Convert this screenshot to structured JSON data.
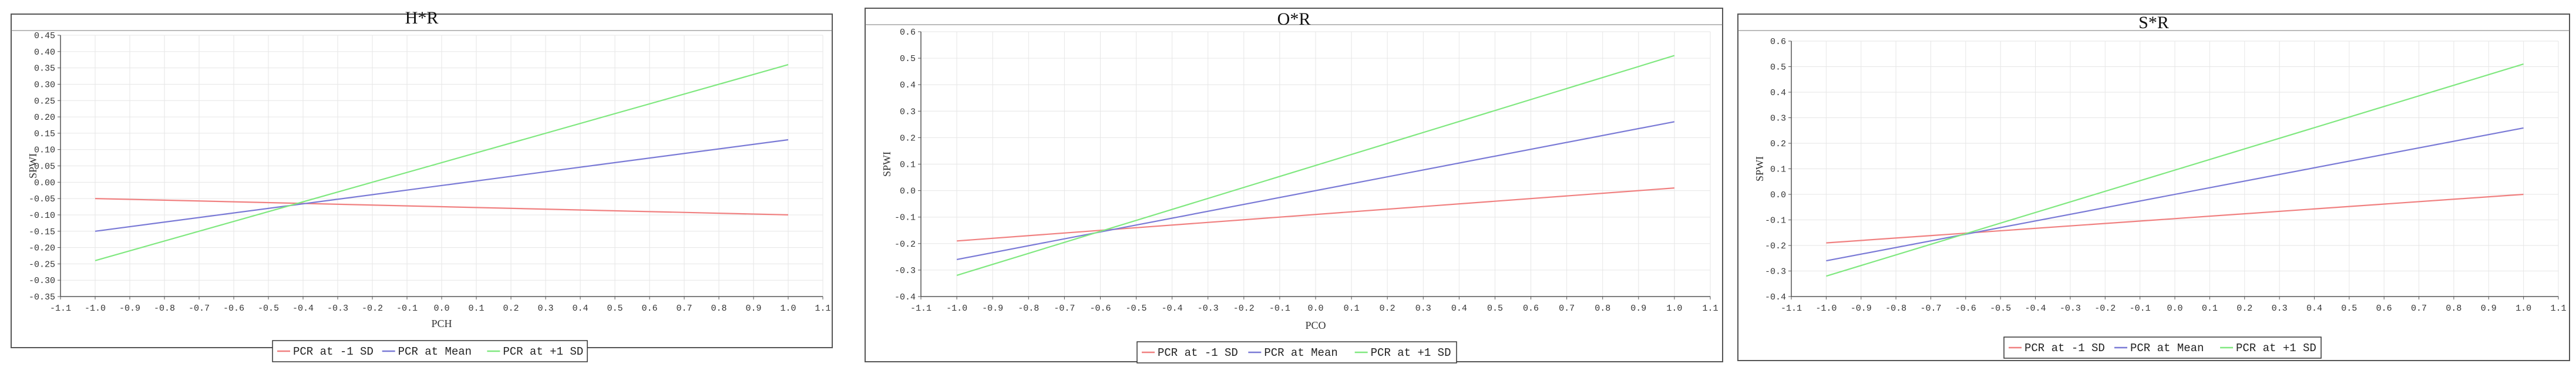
{
  "chart_data": [
    {
      "type": "line",
      "title": "H*R",
      "xlabel": "PCH",
      "ylabel": "SPWI",
      "xlim": [
        -1.1,
        1.1
      ],
      "ylim": [
        -0.35,
        0.45
      ],
      "xticks": [
        "-1.1",
        "-1.0",
        "-0.9",
        "-0.8",
        "-0.7",
        "-0.6",
        "-0.5",
        "-0.4",
        "-0.3",
        "-0.2",
        "-0.1",
        "0.0",
        "0.1",
        "0.2",
        "0.3",
        "0.4",
        "0.5",
        "0.6",
        "0.7",
        "0.8",
        "0.9",
        "1.0",
        "1.1"
      ],
      "yticks": [
        "-0.35",
        "-0.30",
        "-0.25",
        "-0.20",
        "-0.15",
        "-0.10",
        "-0.05",
        "0.00",
        "0.05",
        "0.10",
        "0.15",
        "0.20",
        "0.25",
        "0.30",
        "0.35",
        "0.40",
        "0.45"
      ],
      "ytick_step": 0.05,
      "grid": true,
      "legend_position": "bottom-center",
      "series": [
        {
          "name": "PCR at -1 SD",
          "color": "#f08080",
          "x": [
            -1.0,
            1.0
          ],
          "y": [
            -0.05,
            -0.1
          ]
        },
        {
          "name": "PCR at Mean",
          "color": "#7a7ad6",
          "x": [
            -1.0,
            1.0
          ],
          "y": [
            -0.15,
            0.13
          ]
        },
        {
          "name": "PCR at +1 SD",
          "color": "#80e880",
          "x": [
            -1.0,
            1.0
          ],
          "y": [
            -0.24,
            0.36
          ]
        }
      ]
    },
    {
      "type": "line",
      "title": "O*R",
      "xlabel": "PCO",
      "ylabel": "SPWI",
      "xlim": [
        -1.1,
        1.1
      ],
      "ylim": [
        -0.4,
        0.6
      ],
      "xticks": [
        "-1.1",
        "-1.0",
        "-0.9",
        "-0.8",
        "-0.7",
        "-0.6",
        "-0.5",
        "-0.4",
        "-0.3",
        "-0.2",
        "-0.1",
        "0.0",
        "0.1",
        "0.2",
        "0.3",
        "0.4",
        "0.5",
        "0.6",
        "0.7",
        "0.8",
        "0.9",
        "1.0",
        "1.1"
      ],
      "yticks": [
        "-0.4",
        "-0.3",
        "-0.2",
        "-0.1",
        "0.0",
        "0.1",
        "0.2",
        "0.3",
        "0.4",
        "0.5",
        "0.6"
      ],
      "ytick_step": 0.1,
      "grid": true,
      "legend_position": "bottom-center",
      "series": [
        {
          "name": "PCR at -1 SD",
          "color": "#f08080",
          "x": [
            -1.0,
            1.0
          ],
          "y": [
            -0.19,
            0.01
          ]
        },
        {
          "name": "PCR at Mean",
          "color": "#7a7ad6",
          "x": [
            -1.0,
            1.0
          ],
          "y": [
            -0.26,
            0.26
          ]
        },
        {
          "name": "PCR at +1 SD",
          "color": "#80e880",
          "x": [
            -1.0,
            1.0
          ],
          "y": [
            -0.32,
            0.51
          ]
        }
      ]
    },
    {
      "type": "line",
      "title": "S*R",
      "xlabel": "",
      "ylabel": "SPWI",
      "xlim": [
        -1.1,
        1.1
      ],
      "ylim": [
        -0.4,
        0.6
      ],
      "xticks": [
        "-1.1",
        "-1.0",
        "-0.9",
        "-0.8",
        "-0.7",
        "-0.6",
        "-0.5",
        "-0.4",
        "-0.3",
        "-0.2",
        "-0.1",
        "0.0",
        "0.1",
        "0.2",
        "0.3",
        "0.4",
        "0.5",
        "0.6",
        "0.7",
        "0.8",
        "0.9",
        "1.0",
        "1.1"
      ],
      "yticks": [
        "-0.4",
        "-0.3",
        "-0.2",
        "-0.1",
        "0.0",
        "0.1",
        "0.2",
        "0.3",
        "0.4",
        "0.5",
        "0.6"
      ],
      "ytick_step": 0.1,
      "grid": true,
      "legend_position": "bottom-center",
      "series": [
        {
          "name": "PCR at -1 SD",
          "color": "#f08080",
          "x": [
            -1.0,
            1.0
          ],
          "y": [
            -0.19,
            0.0
          ]
        },
        {
          "name": "PCR at Mean",
          "color": "#7a7ad6",
          "x": [
            -1.0,
            1.0
          ],
          "y": [
            -0.26,
            0.26
          ]
        },
        {
          "name": "PCR at +1 SD",
          "color": "#80e880",
          "x": [
            -1.0,
            1.0
          ],
          "y": [
            -0.32,
            0.51
          ]
        }
      ]
    }
  ]
}
